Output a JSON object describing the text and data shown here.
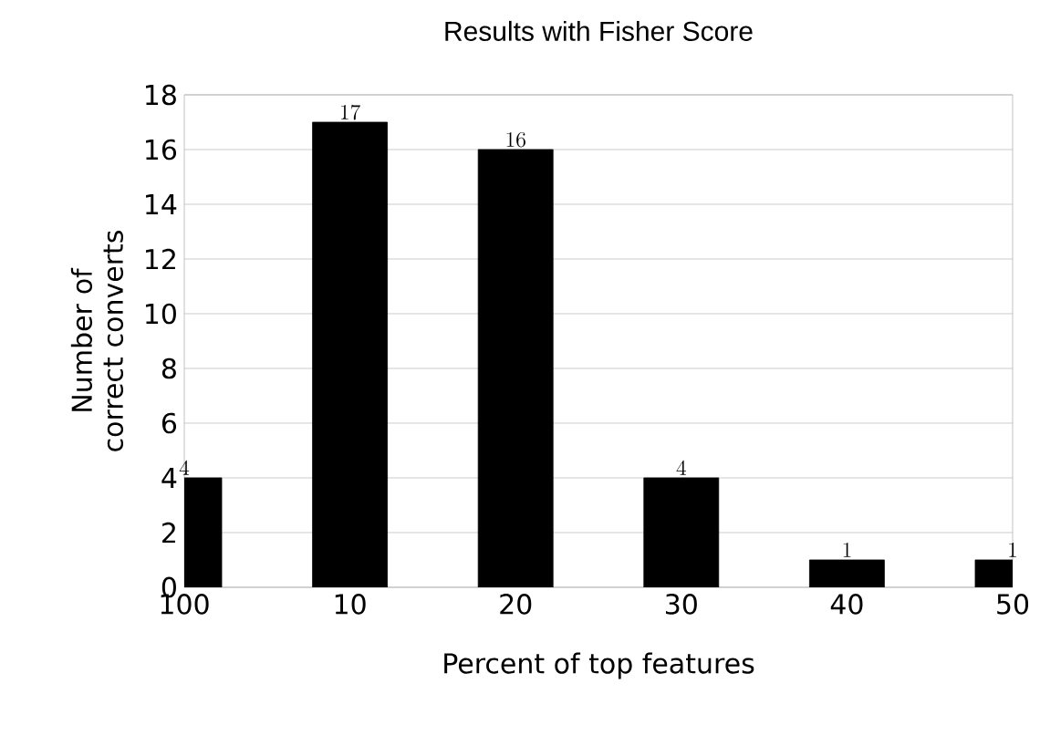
{
  "chart_data": {
    "type": "bar",
    "title": "Results with Fisher Score",
    "xlabel": "Percent of top features",
    "ylabel": "Number of correct converts",
    "categories": [
      "100",
      "10",
      "20",
      "30",
      "40",
      "50"
    ],
    "values": [
      4,
      17,
      16,
      4,
      1,
      1
    ],
    "color": "#000000",
    "ylim": [
      0,
      18
    ],
    "yticks": [
      0,
      2,
      4,
      6,
      8,
      10,
      12,
      14,
      16,
      18
    ],
    "grid": "y",
    "data_labels": true
  }
}
